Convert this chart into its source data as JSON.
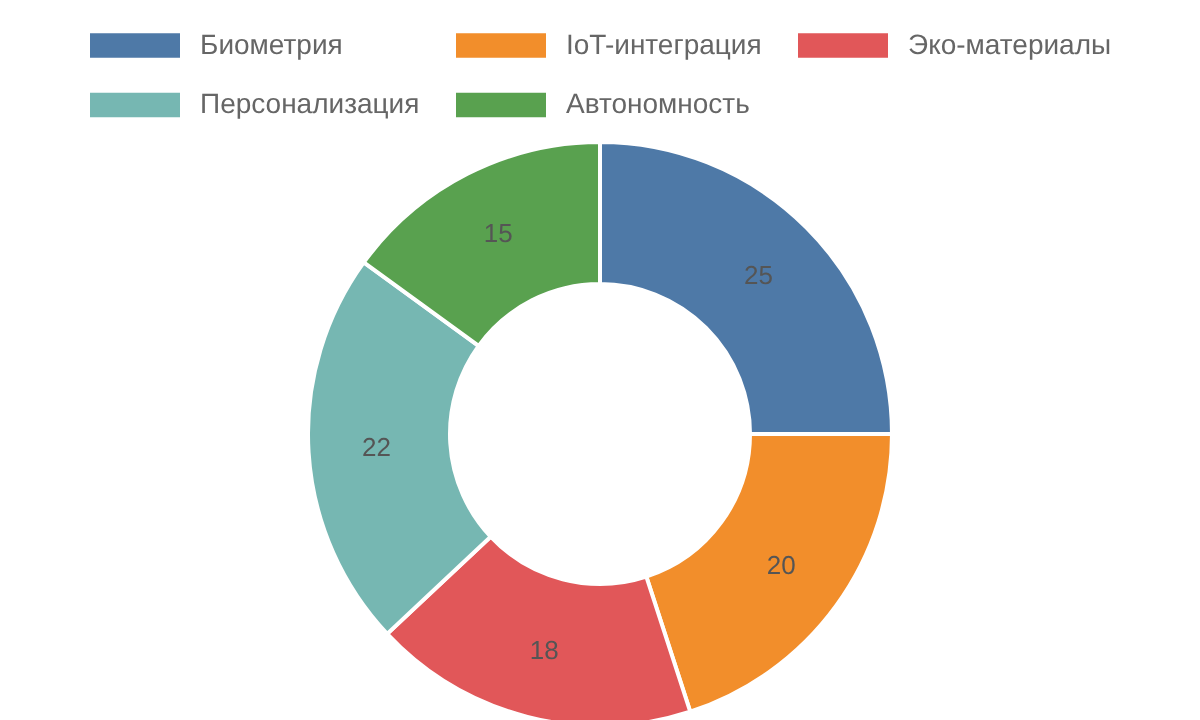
{
  "chart_data": {
    "type": "donut",
    "categories": [
      "Биометрия",
      "IoT-интеграция",
      "Эко-материалы",
      "Персонализация",
      "Автономность"
    ],
    "values": [
      25,
      20,
      18,
      22,
      15
    ],
    "colors": [
      "#4e79a7",
      "#f28e2b",
      "#e15759",
      "#76b7b2",
      "#59a14f"
    ],
    "data_labels": true,
    "legend": "top"
  }
}
